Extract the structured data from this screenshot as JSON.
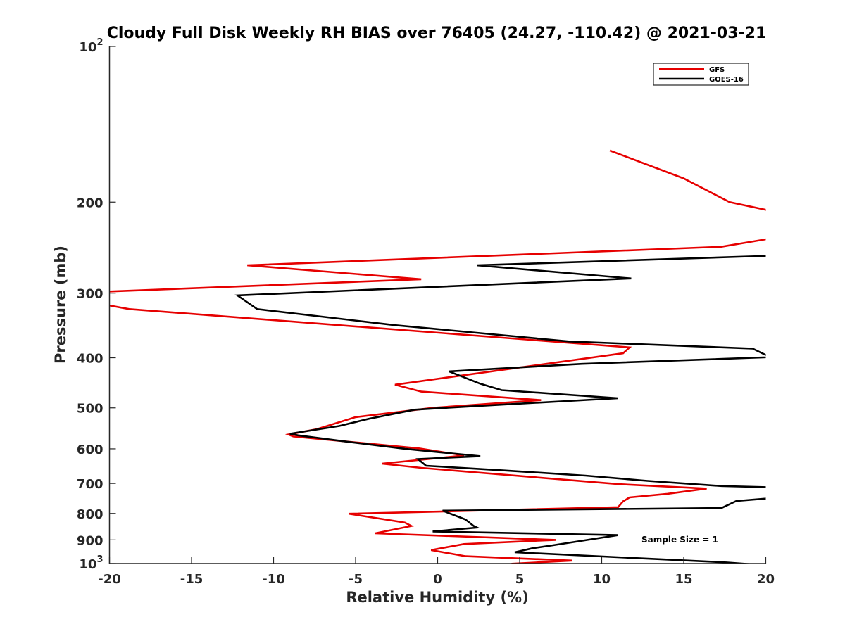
{
  "chart_data": {
    "type": "line",
    "title": "Cloudy Full Disk Weekly RH BIAS over 76405 (24.27, -110.42) @ 2021-03-21",
    "xlabel": "Relative Humidity (%)",
    "ylabel": "Pressure (mb)",
    "xlim": [
      -20,
      20
    ],
    "ylim": [
      100,
      1000
    ],
    "yscale": "log",
    "y_reversed": true,
    "grid": false,
    "legend_position": "top-right",
    "x_ticks": [
      -20,
      -15,
      -10,
      -5,
      0,
      5,
      10,
      15,
      20
    ],
    "x_tick_labels": [
      "-20",
      "-15",
      "-10",
      "-5",
      "0",
      "5",
      "10",
      "15",
      "20"
    ],
    "y_ticks": [
      100,
      200,
      300,
      400,
      500,
      600,
      700,
      800,
      900,
      1000
    ],
    "y_tick_labels": [
      {
        "base": "10",
        "exp": "2"
      },
      {
        "base": "200"
      },
      {
        "base": "300"
      },
      {
        "base": "400"
      },
      {
        "base": "500"
      },
      {
        "base": "600"
      },
      {
        "base": "700"
      },
      {
        "base": "800"
      },
      {
        "base": "900"
      },
      {
        "base": "10",
        "exp": "3"
      }
    ],
    "annotation": "Sample Size = 1",
    "series": [
      {
        "name": "GFS",
        "color": "#e60000",
        "points": [
          [
            10.5,
            159
          ],
          [
            15.0,
            180
          ],
          [
            17.8,
            200
          ],
          [
            20.0,
            207
          ],
          [
            20.2,
            210
          ],
          [
            20.2,
            235
          ],
          [
            20.0,
            236
          ],
          [
            17.3,
            244
          ],
          [
            -11.6,
            265
          ],
          [
            -1.0,
            282
          ],
          [
            -20.2,
            298
          ],
          [
            -20.2,
            316
          ],
          [
            -18.8,
            322
          ],
          [
            11.7,
            382
          ],
          [
            11.3,
            392
          ],
          [
            -2.6,
            451
          ],
          [
            -1.0,
            465
          ],
          [
            6.3,
            483
          ],
          [
            -0.3,
            500
          ],
          [
            -5.0,
            521
          ],
          [
            -7.4,
            550
          ],
          [
            -9.1,
            563
          ],
          [
            -8.8,
            568
          ],
          [
            -1.1,
            599
          ],
          [
            1.6,
            618
          ],
          [
            -3.4,
            641
          ],
          [
            -1.0,
            653
          ],
          [
            11.0,
            702
          ],
          [
            16.4,
            716
          ],
          [
            14.0,
            733
          ],
          [
            11.7,
            745
          ],
          [
            11.3,
            758
          ],
          [
            11.0,
            778
          ],
          [
            -5.4,
            801
          ],
          [
            -2.0,
            833
          ],
          [
            -1.6,
            846
          ],
          [
            -3.8,
            874
          ],
          [
            7.2,
            900
          ],
          [
            1.6,
            917
          ],
          [
            -0.4,
            942
          ],
          [
            1.7,
            968
          ],
          [
            8.2,
            987
          ],
          [
            4.5,
            1001
          ]
        ]
      },
      {
        "name": "GOES-16",
        "color": "#000000",
        "points": [
          [
            20.2,
            254
          ],
          [
            2.4,
            265
          ],
          [
            11.8,
            281
          ],
          [
            -12.2,
            303
          ],
          [
            -11.0,
            322
          ],
          [
            -2.6,
            346
          ],
          [
            8.0,
            372
          ],
          [
            19.2,
            384
          ],
          [
            20.2,
            398
          ],
          [
            20.2,
            399
          ],
          [
            8.8,
            411
          ],
          [
            0.7,
            425
          ],
          [
            2.6,
            449
          ],
          [
            3.9,
            462
          ],
          [
            11.0,
            479
          ],
          [
            3.3,
            494
          ],
          [
            -1.4,
            504
          ],
          [
            -4.2,
            525
          ],
          [
            -6.0,
            542
          ],
          [
            -9.0,
            561
          ],
          [
            -8.5,
            565
          ],
          [
            -5.4,
            582
          ],
          [
            -2.0,
            600
          ],
          [
            2.6,
            620
          ],
          [
            -1.2,
            628
          ],
          [
            -0.7,
            647
          ],
          [
            3.9,
            660
          ],
          [
            9.0,
            676
          ],
          [
            12.8,
            692
          ],
          [
            17.3,
            708
          ],
          [
            20.2,
            712
          ],
          [
            20.2,
            748
          ],
          [
            18.2,
            757
          ],
          [
            17.3,
            781
          ],
          [
            0.3,
            790
          ],
          [
            1.7,
            822
          ],
          [
            2.2,
            846
          ],
          [
            2.4,
            852
          ],
          [
            -0.3,
            867
          ],
          [
            11.0,
            881
          ],
          [
            7.0,
            922
          ],
          [
            5.8,
            934
          ],
          [
            4.7,
            951
          ],
          [
            17.6,
            995
          ],
          [
            20.2,
            1009
          ]
        ]
      }
    ]
  }
}
